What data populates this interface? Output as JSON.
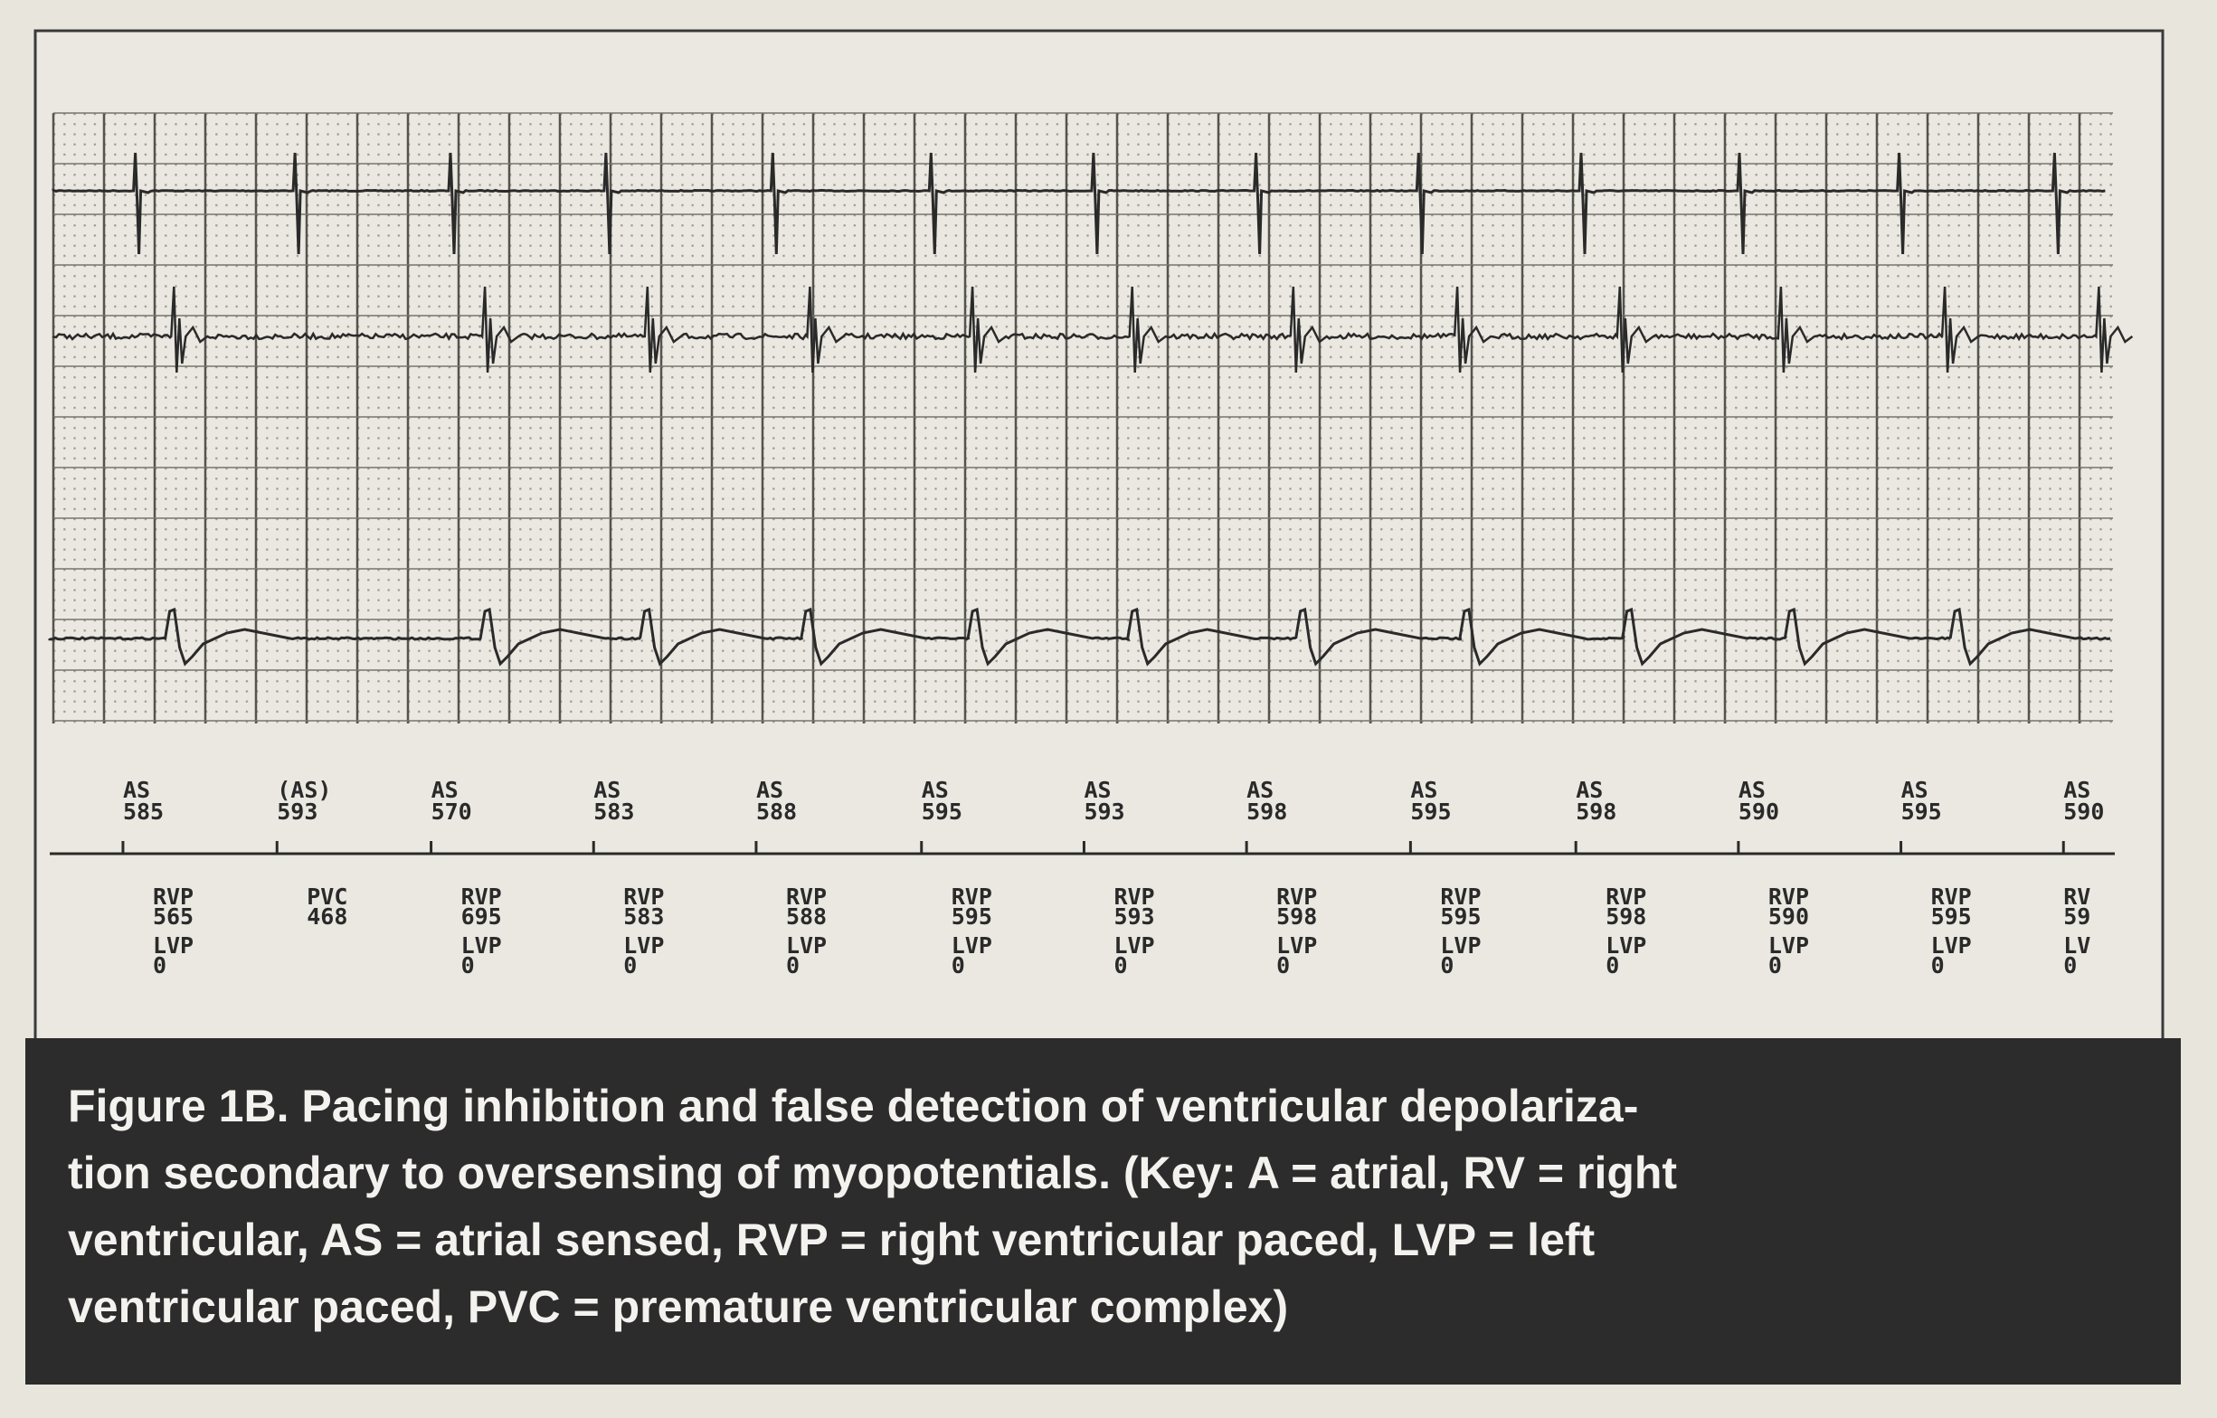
{
  "markers": [
    {
      "atrial": "AS",
      "atrial_interval": "585",
      "ventricular": "RVP",
      "ventricular_interval": "565",
      "lv": "LVP",
      "lv_value": "0"
    },
    {
      "atrial": "(AS)",
      "atrial_interval": "593",
      "ventricular": "PVC",
      "ventricular_interval": "468"
    },
    {
      "atrial": "AS",
      "atrial_interval": "570",
      "ventricular": "RVP",
      "ventricular_interval": "695",
      "lv": "LVP",
      "lv_value": "0"
    },
    {
      "atrial": "AS",
      "atrial_interval": "583",
      "ventricular": "RVP",
      "ventricular_interval": "583",
      "lv": "LVP",
      "lv_value": "0"
    },
    {
      "atrial": "AS",
      "atrial_interval": "588",
      "ventricular": "RVP",
      "ventricular_interval": "588",
      "lv": "LVP",
      "lv_value": "0"
    },
    {
      "atrial": "AS",
      "atrial_interval": "595",
      "ventricular": "RVP",
      "ventricular_interval": "595",
      "lv": "LVP",
      "lv_value": "0"
    },
    {
      "atrial": "AS",
      "atrial_interval": "593",
      "ventricular": "RVP",
      "ventricular_interval": "593",
      "lv": "LVP",
      "lv_value": "0"
    },
    {
      "atrial": "AS",
      "atrial_interval": "598",
      "ventricular": "RVP",
      "ventricular_interval": "598",
      "lv": "LVP",
      "lv_value": "0"
    },
    {
      "atrial": "AS",
      "atrial_interval": "595",
      "ventricular": "RVP",
      "ventricular_interval": "595",
      "lv": "LVP",
      "lv_value": "0"
    },
    {
      "atrial": "AS",
      "atrial_interval": "598",
      "ventricular": "RVP",
      "ventricular_interval": "598",
      "lv": "LVP",
      "lv_value": "0"
    },
    {
      "atrial": "AS",
      "atrial_interval": "590",
      "ventricular": "RVP",
      "ventricular_interval": "590",
      "lv": "LVP",
      "lv_value": "0"
    },
    {
      "atrial": "AS",
      "atrial_interval": "595",
      "ventricular": "RVP",
      "ventricular_interval": "595",
      "lv": "LVP",
      "lv_value": "0"
    },
    {
      "atrial": "AS",
      "atrial_interval": "590",
      "ventricular": "RV",
      "ventricular_interval": "59",
      "lv": "LV",
      "lv_value": "0"
    }
  ],
  "caption": {
    "lines": [
      "Figure 1B. Pacing inhibition and false detection of ventricular depolariza-",
      "tion secondary to oversensing of myopotentials. (Key: A = atrial, RV = right",
      "ventricular, AS = atrial sensed, RVP = right ventricular paced, LVP = left",
      "ventricular paced, PVC = premature ventricular complex)"
    ]
  }
}
